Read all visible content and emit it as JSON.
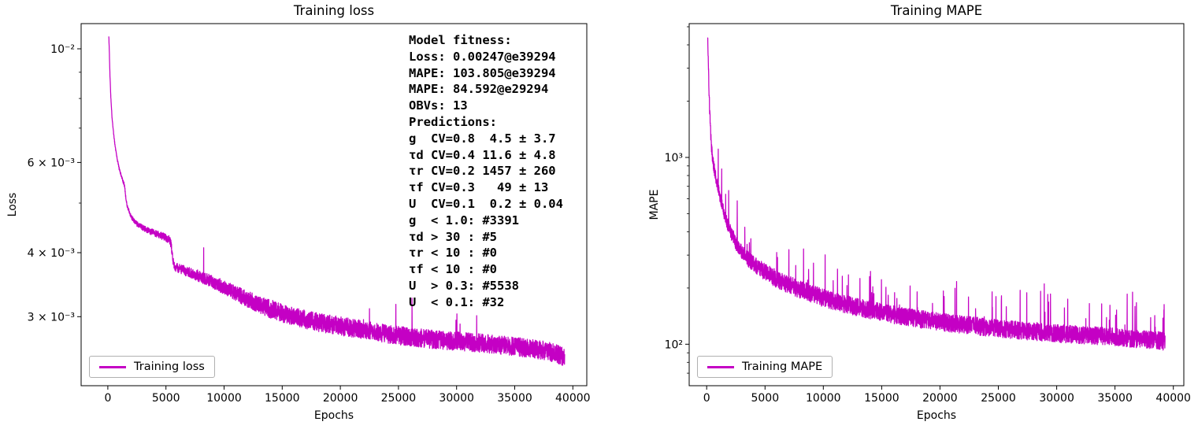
{
  "figure": {
    "background": "#ffffff",
    "line_color": "#c400c4",
    "text_color": "#000000"
  },
  "chart_data": [
    {
      "type": "line",
      "title": "Training loss",
      "xlabel": "Epochs",
      "ylabel": "Loss",
      "xscale": "linear",
      "yscale": "log",
      "grid": false,
      "xlim": [
        -2300,
        41200
      ],
      "ylim": [
        0.0022,
        0.0112
      ],
      "xticks": {
        "values": [
          0,
          5000,
          10000,
          15000,
          20000,
          25000,
          30000,
          35000,
          40000
        ],
        "labels": [
          "0",
          "5000",
          "10000",
          "15000",
          "20000",
          "25000",
          "30000",
          "35000",
          "40000"
        ]
      },
      "yticks": {
        "values": [
          0.01,
          0.006,
          0.004,
          0.003
        ],
        "labels": [
          "10⁻²",
          "6 × 10⁻³",
          "4 × 10⁻³",
          "3 × 10⁻³"
        ],
        "minor": [
          0.009,
          0.008,
          0.007,
          0.005
        ]
      },
      "legend": {
        "label": "Training loss",
        "location": "lower left"
      },
      "series": [
        {
          "name": "Training loss",
          "color": "#c400c4",
          "keypoints": [
            [
              80,
              0.0106
            ],
            [
              120,
              0.01
            ],
            [
              180,
              0.0089
            ],
            [
              250,
              0.0081
            ],
            [
              350,
              0.0074
            ],
            [
              500,
              0.0068
            ],
            [
              650,
              0.0064
            ],
            [
              800,
              0.0061
            ],
            [
              1000,
              0.0058
            ],
            [
              1200,
              0.0056
            ],
            [
              1450,
              0.0054
            ],
            [
              1550,
              0.0051
            ],
            [
              1700,
              0.0049
            ],
            [
              2000,
              0.0047
            ],
            [
              2500,
              0.00455
            ],
            [
              3200,
              0.00445
            ],
            [
              4000,
              0.00437
            ],
            [
              4800,
              0.0043
            ],
            [
              5300,
              0.00425
            ],
            [
              5450,
              0.00415
            ],
            [
              5600,
              0.00385
            ],
            [
              5800,
              0.00375
            ],
            [
              6500,
              0.0037
            ],
            [
              7500,
              0.00363
            ],
            [
              8500,
              0.00355
            ],
            [
              9500,
              0.00347
            ],
            [
              10500,
              0.00338
            ],
            [
              12000,
              0.00325
            ],
            [
              13500,
              0.00314
            ],
            [
              15000,
              0.00305
            ],
            [
              16500,
              0.00298
            ],
            [
              18000,
              0.00293
            ],
            [
              20000,
              0.00288
            ],
            [
              22000,
              0.00283
            ],
            [
              24000,
              0.00278
            ],
            [
              26000,
              0.00274
            ],
            [
              28000,
              0.00271
            ],
            [
              30000,
              0.00269
            ],
            [
              32000,
              0.00267
            ],
            [
              34000,
              0.00264
            ],
            [
              36000,
              0.00261
            ],
            [
              37500,
              0.00258
            ],
            [
              38500,
              0.00255
            ],
            [
              39294,
              0.0025
            ]
          ],
          "noise": {
            "amp_start": 0.004,
            "amp_end": 0.042,
            "ramp_epochs": 14000,
            "spike_prob": 0.005,
            "spike_max": 0.15,
            "spike_after": 8000,
            "seed": 1337
          },
          "sample_points": 3800
        }
      ],
      "annotation": {
        "lines": [
          "Model fitness:",
          "Loss: 0.00247@e39294",
          "MAPE: 103.805@e39294",
          "MAPE: 84.592@e29294",
          "OBVs: 13",
          "Predictions:",
          "g  CV=0.8  4.5 ± 3.7",
          "τd CV=0.4 11.6 ± 4.8",
          "τr CV=0.2 1457 ± 260",
          "τf CV=0.3   49 ± 13",
          "U  CV=0.1  0.2 ± 0.04",
          "g  < 1.0: #3391",
          "τd > 30 : #5",
          "τr < 10 : #0",
          "τf < 10 : #0",
          "U  > 0.3: #5538",
          "U  < 0.1: #32"
        ]
      }
    },
    {
      "type": "line",
      "title": "Training MAPE",
      "xlabel": "Epochs",
      "ylabel": "MAPE",
      "xscale": "linear",
      "yscale": "log",
      "grid": false,
      "xlim": [
        -1500,
        40900
      ],
      "ylim": [
        60,
        5200
      ],
      "xticks": {
        "values": [
          0,
          5000,
          10000,
          15000,
          20000,
          25000,
          30000,
          35000,
          40000
        ],
        "labels": [
          "0",
          "5000",
          "10000",
          "15000",
          "20000",
          "25000",
          "30000",
          "35000",
          "40000"
        ]
      },
      "yticks": {
        "values": [
          1000,
          100
        ],
        "labels": [
          "10³",
          "10²"
        ],
        "minor": [
          5000,
          4000,
          3000,
          2000,
          900,
          800,
          700,
          600,
          500,
          400,
          300,
          200,
          90,
          80,
          70
        ]
      },
      "legend": {
        "label": "Training MAPE",
        "location": "lower left"
      },
      "series": [
        {
          "name": "Training MAPE",
          "color": "#c400c4",
          "keypoints": [
            [
              80,
              4300
            ],
            [
              120,
              3600
            ],
            [
              200,
              2300
            ],
            [
              300,
              1500
            ],
            [
              400,
              1150
            ],
            [
              500,
              1000
            ],
            [
              650,
              870
            ],
            [
              800,
              780
            ],
            [
              1000,
              680
            ],
            [
              1300,
              560
            ],
            [
              1600,
              480
            ],
            [
              2000,
              410
            ],
            [
              2500,
              350
            ],
            [
              3000,
              315
            ],
            [
              3600,
              285
            ],
            [
              4300,
              262
            ],
            [
              5000,
              245
            ],
            [
              6000,
              225
            ],
            [
              7000,
              210
            ],
            [
              8000,
              198
            ],
            [
              9000,
              188
            ],
            [
              10000,
              178
            ],
            [
              11500,
              167
            ],
            [
              13000,
              158
            ],
            [
              15000,
              149
            ],
            [
              17000,
              141
            ],
            [
              19000,
              135
            ],
            [
              21000,
              130
            ],
            [
              23000,
              126
            ],
            [
              25000,
              122
            ],
            [
              27000,
              119
            ],
            [
              29000,
              116
            ],
            [
              31000,
              114
            ],
            [
              33000,
              112
            ],
            [
              35000,
              110
            ],
            [
              37000,
              107
            ],
            [
              38500,
              106
            ],
            [
              39294,
              104
            ]
          ],
          "noise": {
            "amp_start": 0.07,
            "amp_end": 0.11,
            "ramp_epochs": 6000,
            "spike_prob": 0.028,
            "spike_max": 0.7,
            "spike_after": 300,
            "seed": 4242
          },
          "sample_points": 3800
        }
      ],
      "annotation": {
        "lines": []
      }
    }
  ]
}
